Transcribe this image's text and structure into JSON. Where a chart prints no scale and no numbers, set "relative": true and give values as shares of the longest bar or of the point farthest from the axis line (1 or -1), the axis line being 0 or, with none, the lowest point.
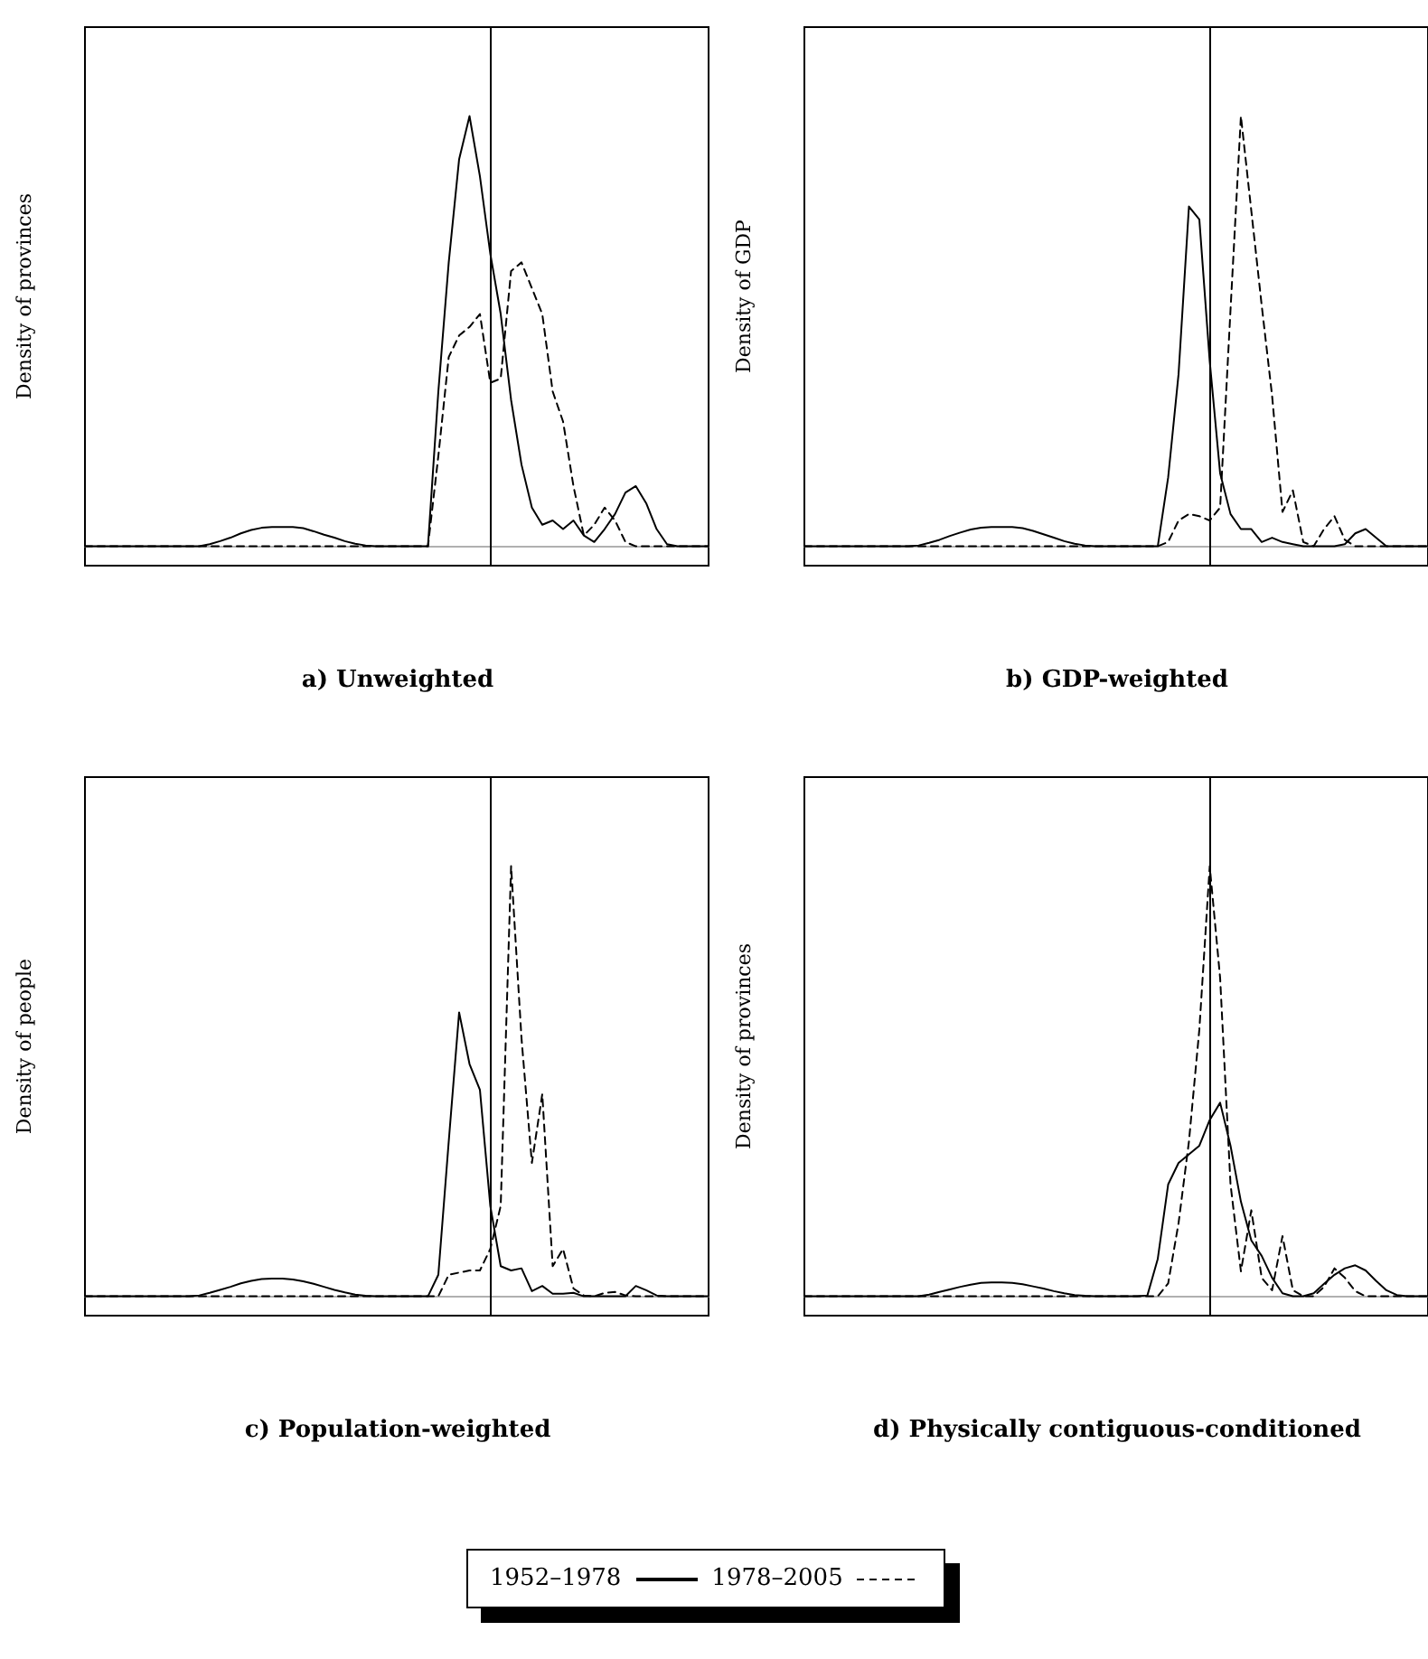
{
  "chart_data": [
    {
      "type": "line",
      "title": "a) Unweighted",
      "ylabel": "Density of provinces",
      "relative": true,
      "legend": "bottom",
      "categories": [
        null,
        null,
        null,
        null,
        null,
        null,
        null,
        null,
        null,
        null,
        null,
        null,
        null,
        null,
        null,
        null,
        null,
        null,
        null,
        null,
        null,
        null,
        null,
        null,
        null,
        null,
        null,
        null,
        null,
        null,
        null,
        null,
        null,
        null,
        null,
        null,
        null,
        null,
        null,
        null,
        null,
        null,
        null,
        null,
        null,
        null,
        null,
        null,
        null,
        null,
        null,
        null,
        null,
        null,
        null,
        null,
        null,
        null,
        null,
        null,
        null
      ],
      "series": [
        {
          "name": "1952–1978",
          "color": "#000000",
          "line_style": "solid",
          "values": [
            0,
            0,
            0,
            0,
            0,
            0,
            0,
            0,
            0,
            0,
            0,
            0,
            0.005,
            0.012,
            0.02,
            0.03,
            0.038,
            0.043,
            0.045,
            0.045,
            0.045,
            0.042,
            0.035,
            0.027,
            0.02,
            0.012,
            0.006,
            0.002,
            0,
            0,
            0,
            0,
            0,
            0,
            0.36,
            0.66,
            0.9,
            1.0,
            0.86,
            0.68,
            0.54,
            0.34,
            0.19,
            0.09,
            0.05,
            0.06,
            0.04,
            0.06,
            0.025,
            0.01,
            0.04,
            0.075,
            0.125,
            0.14,
            0.1,
            0.04,
            0.005,
            0,
            0,
            0,
            0
          ]
        },
        {
          "name": "1978–2005",
          "color": "#000000",
          "line_style": "dashed",
          "values": [
            0,
            0,
            0,
            0,
            0,
            0,
            0,
            0,
            0,
            0,
            0,
            0,
            0,
            0,
            0,
            0,
            0,
            0,
            0,
            0,
            0,
            0,
            0,
            0,
            0,
            0,
            0,
            0,
            0,
            0,
            0,
            0,
            0,
            0,
            0.21,
            0.44,
            0.49,
            0.51,
            0.54,
            0.38,
            0.39,
            0.64,
            0.66,
            0.6,
            0.54,
            0.36,
            0.29,
            0.14,
            0.025,
            0.05,
            0.09,
            0.06,
            0.01,
            0,
            0,
            0,
            0,
            0,
            0,
            0,
            0
          ]
        }
      ]
    },
    {
      "type": "line",
      "title": "b) GDP-weighted",
      "ylabel": "Density of GDP",
      "relative": true,
      "categories": [
        null,
        null,
        null,
        null,
        null,
        null,
        null,
        null,
        null,
        null,
        null,
        null,
        null,
        null,
        null,
        null,
        null,
        null,
        null,
        null,
        null,
        null,
        null,
        null,
        null,
        null,
        null,
        null,
        null,
        null,
        null,
        null,
        null,
        null,
        null,
        null,
        null,
        null,
        null,
        null,
        null,
        null,
        null,
        null,
        null,
        null,
        null,
        null,
        null,
        null,
        null,
        null,
        null,
        null,
        null,
        null,
        null,
        null,
        null,
        null,
        null
      ],
      "series": [
        {
          "color": "#000000",
          "line_style": "solid",
          "values": [
            0,
            0,
            0,
            0,
            0,
            0,
            0,
            0,
            0,
            0,
            0,
            0.002,
            0.008,
            0.015,
            0.024,
            0.032,
            0.039,
            0.043,
            0.045,
            0.045,
            0.045,
            0.042,
            0.036,
            0.028,
            0.02,
            0.012,
            0.006,
            0.002,
            0,
            0,
            0,
            0,
            0,
            0,
            0,
            0.16,
            0.4,
            0.79,
            0.76,
            0.43,
            0.17,
            0.075,
            0.04,
            0.04,
            0.01,
            0.02,
            0.01,
            0.005,
            0,
            0,
            0,
            0,
            0.005,
            0.03,
            0.04,
            0.02,
            0,
            0,
            0,
            0,
            0
          ]
        },
        {
          "color": "#000000",
          "line_style": "dashed",
          "values": [
            0,
            0,
            0,
            0,
            0,
            0,
            0,
            0,
            0,
            0,
            0,
            0,
            0,
            0,
            0,
            0,
            0,
            0,
            0,
            0,
            0,
            0,
            0,
            0,
            0,
            0,
            0,
            0,
            0,
            0,
            0,
            0,
            0,
            0,
            0,
            0.01,
            0.06,
            0.075,
            0.07,
            0.06,
            0.09,
            0.55,
            1.0,
            0.78,
            0.56,
            0.35,
            0.08,
            0.13,
            0.01,
            0,
            0.04,
            0.07,
            0.015,
            0,
            0,
            0,
            0,
            0,
            0,
            0,
            0
          ]
        }
      ]
    },
    {
      "type": "line",
      "title": "c) Population-weighted",
      "ylabel": "Density of people",
      "relative": true,
      "categories": [
        null,
        null,
        null,
        null,
        null,
        null,
        null,
        null,
        null,
        null,
        null,
        null,
        null,
        null,
        null,
        null,
        null,
        null,
        null,
        null,
        null,
        null,
        null,
        null,
        null,
        null,
        null,
        null,
        null,
        null,
        null,
        null,
        null,
        null,
        null,
        null,
        null,
        null,
        null,
        null,
        null,
        null,
        null,
        null,
        null,
        null,
        null,
        null,
        null,
        null,
        null,
        null,
        null,
        null,
        null,
        null,
        null,
        null,
        null,
        null,
        null
      ],
      "series": [
        {
          "color": "#000000",
          "line_style": "solid",
          "values": [
            0,
            0,
            0,
            0,
            0,
            0,
            0,
            0,
            0,
            0,
            0,
            0.002,
            0.008,
            0.015,
            0.022,
            0.03,
            0.036,
            0.04,
            0.041,
            0.041,
            0.039,
            0.035,
            0.029,
            0.022,
            0.015,
            0.009,
            0.004,
            0.001,
            0,
            0,
            0,
            0,
            0,
            0,
            0.05,
            0.36,
            0.66,
            0.54,
            0.48,
            0.21,
            0.07,
            0.06,
            0.065,
            0.012,
            0.024,
            0.006,
            0.006,
            0.008,
            0,
            0,
            0,
            0,
            0,
            0.024,
            0.014,
            0.002,
            0,
            0,
            0,
            0,
            0
          ]
        },
        {
          "color": "#000000",
          "line_style": "dashed",
          "values": [
            0,
            0,
            0,
            0,
            0,
            0,
            0,
            0,
            0,
            0,
            0,
            0,
            0,
            0,
            0,
            0,
            0,
            0,
            0,
            0,
            0,
            0,
            0,
            0,
            0,
            0,
            0,
            0,
            0,
            0,
            0,
            0,
            0,
            0,
            0,
            0.05,
            0.055,
            0.06,
            0.06,
            0.11,
            0.21,
            1.0,
            0.6,
            0.31,
            0.47,
            0.07,
            0.11,
            0.018,
            0.002,
            0,
            0.008,
            0.01,
            0.002,
            0,
            0,
            0,
            0,
            0,
            0,
            0,
            0
          ]
        }
      ]
    },
    {
      "type": "line",
      "title": "d) Physically contiguous-conditioned",
      "ylabel": "Density of provinces",
      "relative": true,
      "categories": [
        null,
        null,
        null,
        null,
        null,
        null,
        null,
        null,
        null,
        null,
        null,
        null,
        null,
        null,
        null,
        null,
        null,
        null,
        null,
        null,
        null,
        null,
        null,
        null,
        null,
        null,
        null,
        null,
        null,
        null,
        null,
        null,
        null,
        null,
        null,
        null,
        null,
        null,
        null,
        null,
        null,
        null,
        null,
        null,
        null,
        null,
        null,
        null,
        null,
        null,
        null,
        null,
        null,
        null,
        null,
        null,
        null,
        null,
        null,
        null,
        null
      ],
      "series": [
        {
          "color": "#000000",
          "line_style": "solid",
          "values": [
            0,
            0,
            0,
            0,
            0,
            0,
            0,
            0,
            0,
            0,
            0,
            0,
            0.004,
            0.01,
            0.016,
            0.022,
            0.027,
            0.031,
            0.032,
            0.032,
            0.031,
            0.028,
            0.023,
            0.018,
            0.012,
            0.007,
            0.003,
            0.001,
            0,
            0,
            0,
            0,
            0,
            0.002,
            0.087,
            0.26,
            0.31,
            0.33,
            0.35,
            0.41,
            0.45,
            0.35,
            0.22,
            0.13,
            0.094,
            0.043,
            0.007,
            0,
            0,
            0.007,
            0.029,
            0.05,
            0.065,
            0.072,
            0.06,
            0.036,
            0.014,
            0.003,
            0,
            0,
            0
          ]
        },
        {
          "color": "#000000",
          "line_style": "dashed",
          "values": [
            0,
            0,
            0,
            0,
            0,
            0,
            0,
            0,
            0,
            0,
            0,
            0,
            0,
            0,
            0,
            0,
            0,
            0,
            0,
            0,
            0,
            0,
            0,
            0,
            0,
            0,
            0,
            0,
            0,
            0,
            0,
            0,
            0,
            0,
            0,
            0.03,
            0.17,
            0.36,
            0.62,
            1.0,
            0.74,
            0.26,
            0.058,
            0.2,
            0.043,
            0.014,
            0.14,
            0.014,
            0,
            0,
            0.022,
            0.065,
            0.043,
            0.012,
            0,
            0,
            0,
            0,
            0,
            0,
            0
          ]
        }
      ]
    }
  ]
}
